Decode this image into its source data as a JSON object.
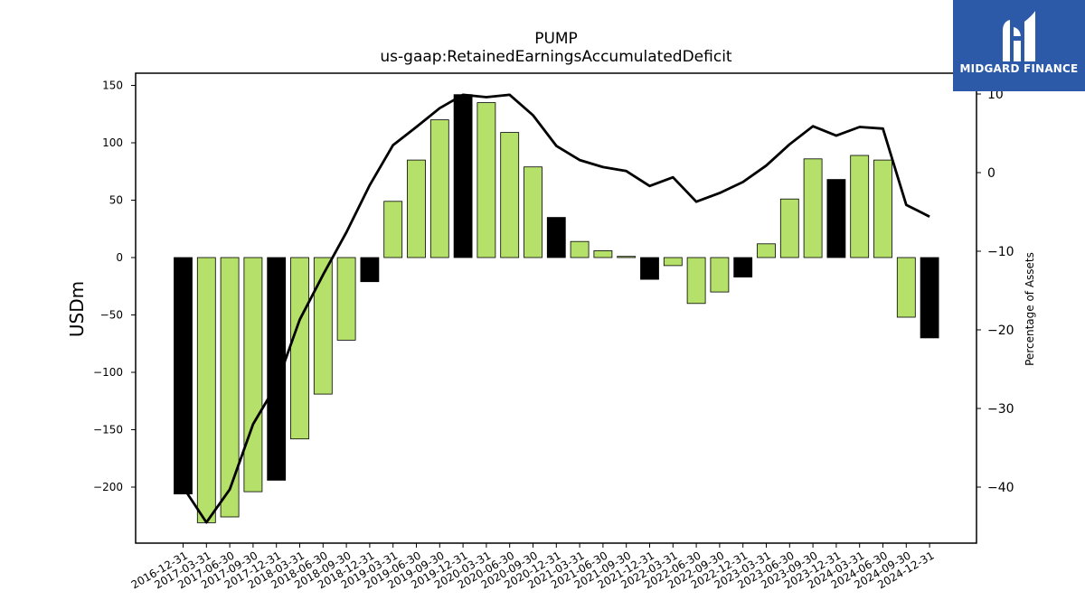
{
  "chart_data": {
    "type": "bar",
    "title": "PUMP",
    "subtitle": "us-gaap:RetainedEarningsAccumulatedDeficit",
    "ylabel": "USDm",
    "y2label": "Percentage of Assets",
    "ylim": [
      -250,
      160
    ],
    "y2lim": [
      -47,
      10
    ],
    "yticks": [
      -200,
      -150,
      -100,
      -50,
      0,
      50,
      100,
      150
    ],
    "y2ticks": [
      -40,
      -30,
      -20,
      -10,
      0,
      10
    ],
    "categories": [
      "2016-12-31",
      "2017-03-31",
      "2017-06-30",
      "2017-09-30",
      "2017-12-31",
      "2018-03-31",
      "2018-06-30",
      "2018-09-30",
      "2018-12-31",
      "2019-03-31",
      "2019-06-30",
      "2019-09-30",
      "2019-12-31",
      "2020-03-31",
      "2020-06-30",
      "2020-09-30",
      "2020-12-31",
      "2021-03-31",
      "2021-06-30",
      "2021-09-30",
      "2021-12-31",
      "2022-03-31",
      "2022-06-30",
      "2022-09-30",
      "2022-12-31",
      "2023-03-31",
      "2023-06-30",
      "2023-09-30",
      "2023-12-31",
      "2024-03-31",
      "2024-06-30",
      "2024-09-30",
      "2024-12-31"
    ],
    "series": [
      {
        "type": "bar",
        "values": [
          -206,
          -231,
          -226,
          -204,
          -194,
          -158,
          -119,
          -72,
          -21,
          49,
          85,
          120,
          142,
          135,
          109,
          79,
          35,
          14,
          6,
          1,
          -19,
          -7,
          -40,
          -30,
          -17,
          12,
          51,
          86,
          68,
          89,
          85,
          -52,
          -70
        ],
        "highlight": [
          true,
          false,
          false,
          false,
          true,
          false,
          false,
          false,
          true,
          false,
          false,
          false,
          true,
          false,
          false,
          false,
          true,
          false,
          false,
          false,
          true,
          false,
          false,
          false,
          true,
          false,
          false,
          false,
          true,
          false,
          false,
          false,
          true
        ]
      },
      {
        "type": "line",
        "axis": "right",
        "values": [
          -40,
          -44.5,
          -40.3,
          -32,
          -27,
          -18.7,
          -13,
          -7.6,
          -1.6,
          3.5,
          5.8,
          8.2,
          9.9,
          9.6,
          9.9,
          7.3,
          3.4,
          1.6,
          0.7,
          0.2,
          -1.7,
          -0.6,
          -3.7,
          -2.6,
          -1.2,
          0.9,
          3.6,
          5.9,
          4.7,
          5.8,
          5.6,
          -4.1,
          -5.6
        ]
      }
    ],
    "colors": {
      "bar": "#b5e06a",
      "bar_highlight": "#000000",
      "line": "#000000",
      "logo_bg": "#2d5aa8"
    }
  },
  "logo": {
    "text": "MIDGARD FINANCE",
    "icon": "midgard-logo-icon"
  }
}
